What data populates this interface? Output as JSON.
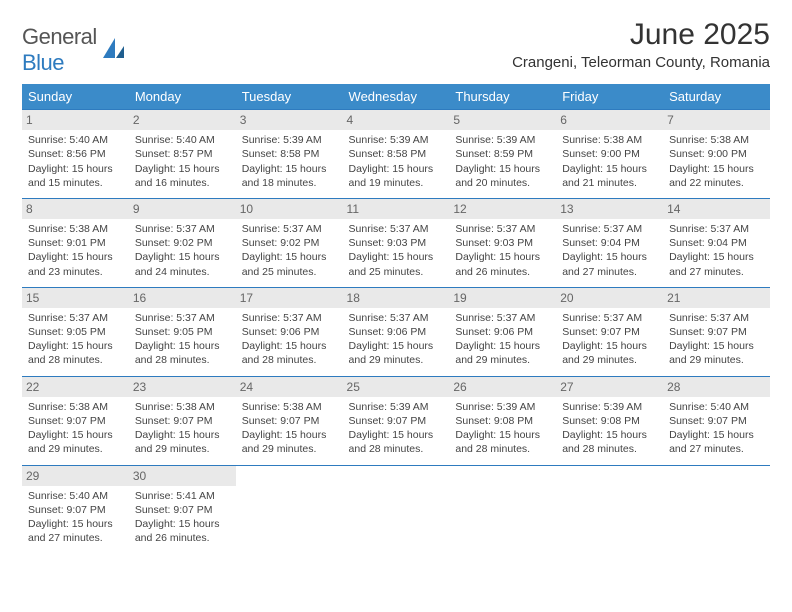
{
  "brand": {
    "word1": "General",
    "word2": "Blue"
  },
  "title": "June 2025",
  "location": "Crangeni, Teleorman County, Romania",
  "colors": {
    "header_bg": "#3b8bc9",
    "header_text": "#ffffff",
    "rule": "#2e7bbf",
    "daynum_bg": "#e9e9e9",
    "text": "#444444",
    "brand_blue": "#2e7bbf"
  },
  "day_labels": [
    "Sunday",
    "Monday",
    "Tuesday",
    "Wednesday",
    "Thursday",
    "Friday",
    "Saturday"
  ],
  "weeks": [
    [
      {
        "n": "1",
        "sr": "5:40 AM",
        "ss": "8:56 PM",
        "dl": "15 hours and 15 minutes."
      },
      {
        "n": "2",
        "sr": "5:40 AM",
        "ss": "8:57 PM",
        "dl": "15 hours and 16 minutes."
      },
      {
        "n": "3",
        "sr": "5:39 AM",
        "ss": "8:58 PM",
        "dl": "15 hours and 18 minutes."
      },
      {
        "n": "4",
        "sr": "5:39 AM",
        "ss": "8:58 PM",
        "dl": "15 hours and 19 minutes."
      },
      {
        "n": "5",
        "sr": "5:39 AM",
        "ss": "8:59 PM",
        "dl": "15 hours and 20 minutes."
      },
      {
        "n": "6",
        "sr": "5:38 AM",
        "ss": "9:00 PM",
        "dl": "15 hours and 21 minutes."
      },
      {
        "n": "7",
        "sr": "5:38 AM",
        "ss": "9:00 PM",
        "dl": "15 hours and 22 minutes."
      }
    ],
    [
      {
        "n": "8",
        "sr": "5:38 AM",
        "ss": "9:01 PM",
        "dl": "15 hours and 23 minutes."
      },
      {
        "n": "9",
        "sr": "5:37 AM",
        "ss": "9:02 PM",
        "dl": "15 hours and 24 minutes."
      },
      {
        "n": "10",
        "sr": "5:37 AM",
        "ss": "9:02 PM",
        "dl": "15 hours and 25 minutes."
      },
      {
        "n": "11",
        "sr": "5:37 AM",
        "ss": "9:03 PM",
        "dl": "15 hours and 25 minutes."
      },
      {
        "n": "12",
        "sr": "5:37 AM",
        "ss": "9:03 PM",
        "dl": "15 hours and 26 minutes."
      },
      {
        "n": "13",
        "sr": "5:37 AM",
        "ss": "9:04 PM",
        "dl": "15 hours and 27 minutes."
      },
      {
        "n": "14",
        "sr": "5:37 AM",
        "ss": "9:04 PM",
        "dl": "15 hours and 27 minutes."
      }
    ],
    [
      {
        "n": "15",
        "sr": "5:37 AM",
        "ss": "9:05 PM",
        "dl": "15 hours and 28 minutes."
      },
      {
        "n": "16",
        "sr": "5:37 AM",
        "ss": "9:05 PM",
        "dl": "15 hours and 28 minutes."
      },
      {
        "n": "17",
        "sr": "5:37 AM",
        "ss": "9:06 PM",
        "dl": "15 hours and 28 minutes."
      },
      {
        "n": "18",
        "sr": "5:37 AM",
        "ss": "9:06 PM",
        "dl": "15 hours and 29 minutes."
      },
      {
        "n": "19",
        "sr": "5:37 AM",
        "ss": "9:06 PM",
        "dl": "15 hours and 29 minutes."
      },
      {
        "n": "20",
        "sr": "5:37 AM",
        "ss": "9:07 PM",
        "dl": "15 hours and 29 minutes."
      },
      {
        "n": "21",
        "sr": "5:37 AM",
        "ss": "9:07 PM",
        "dl": "15 hours and 29 minutes."
      }
    ],
    [
      {
        "n": "22",
        "sr": "5:38 AM",
        "ss": "9:07 PM",
        "dl": "15 hours and 29 minutes."
      },
      {
        "n": "23",
        "sr": "5:38 AM",
        "ss": "9:07 PM",
        "dl": "15 hours and 29 minutes."
      },
      {
        "n": "24",
        "sr": "5:38 AM",
        "ss": "9:07 PM",
        "dl": "15 hours and 29 minutes."
      },
      {
        "n": "25",
        "sr": "5:39 AM",
        "ss": "9:07 PM",
        "dl": "15 hours and 28 minutes."
      },
      {
        "n": "26",
        "sr": "5:39 AM",
        "ss": "9:08 PM",
        "dl": "15 hours and 28 minutes."
      },
      {
        "n": "27",
        "sr": "5:39 AM",
        "ss": "9:08 PM",
        "dl": "15 hours and 28 minutes."
      },
      {
        "n": "28",
        "sr": "5:40 AM",
        "ss": "9:07 PM",
        "dl": "15 hours and 27 minutes."
      }
    ],
    [
      {
        "n": "29",
        "sr": "5:40 AM",
        "ss": "9:07 PM",
        "dl": "15 hours and 27 minutes."
      },
      {
        "n": "30",
        "sr": "5:41 AM",
        "ss": "9:07 PM",
        "dl": "15 hours and 26 minutes."
      },
      null,
      null,
      null,
      null,
      null
    ]
  ],
  "labels": {
    "sunrise": "Sunrise:",
    "sunset": "Sunset:",
    "daylight": "Daylight:"
  }
}
